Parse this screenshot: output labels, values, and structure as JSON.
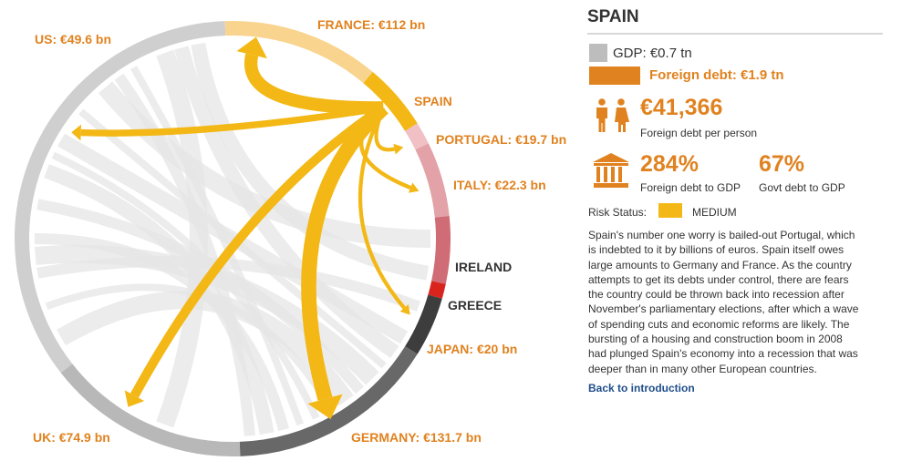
{
  "chart_data": {
    "type": "chord",
    "focus": "SPAIN",
    "segments": [
      {
        "label": "SPAIN",
        "highlight": true
      },
      {
        "label": "PORTUGAL: €19.7 bn",
        "highlight": true
      },
      {
        "label": "ITALY: €22.3 bn",
        "highlight": true
      },
      {
        "label": "IRELAND",
        "highlight": false
      },
      {
        "label": "GREECE",
        "highlight": false
      },
      {
        "label": "JAPAN: €20 bn",
        "highlight": true
      },
      {
        "label": "GERMANY: €131.7 bn",
        "highlight": true
      },
      {
        "label": "UK: €74.9 bn",
        "highlight": true
      },
      {
        "label": "US: €49.6 bn",
        "highlight": true
      },
      {
        "label": "FRANCE: €112 bn",
        "highlight": true
      }
    ],
    "flows_from_spain": [
      {
        "to": "GERMANY",
        "value": 131.7
      },
      {
        "to": "FRANCE",
        "value": 112
      },
      {
        "to": "UK",
        "value": 74.9
      },
      {
        "to": "US",
        "value": 49.6
      },
      {
        "to": "ITALY",
        "value": 22.3
      },
      {
        "to": "JAPAN",
        "value": 20
      },
      {
        "to": "PORTUGAL",
        "value": 19.7
      }
    ],
    "colors": {
      "spain": "#f3b816",
      "france": "#f9d48f",
      "portugal": "#f0c0c4",
      "italy": "#e2a2a8",
      "ireland": "#cf6c75",
      "greece": "#d9241e",
      "japan": "#3d3d3d",
      "germany": "#686868",
      "uk": "#b8b8b8",
      "us": "#cfcfcf",
      "other_arc": "#dddddd",
      "label_orange": "#e0821f",
      "label_dark": "#333333"
    }
  },
  "panel": {
    "title": "SPAIN",
    "gdp_label": "GDP: €0.7 tn",
    "foreign_debt_label": "Foreign debt: €1.9 tn",
    "per_person_value": "€41,366",
    "per_person_caption": "Foreign debt per person",
    "debt_gdp_value": "284%",
    "debt_gdp_caption": "Foreign debt to GDP",
    "govt_debt_value": "67%",
    "govt_debt_caption": "Govt debt to GDP",
    "risk_label": "Risk Status:",
    "risk_value": "MEDIUM",
    "risk_color": "#f3b816",
    "description": "Spain's number one worry is bailed-out Portugal, which is indebted to it by billions of euros. Spain itself owes large amounts to Germany and France. As the country attempts to get its debts under control, there are fears the country could be thrown back into recession after November's parliamentary elections, after which a wave of spending cuts and economic reforms are likely. The bursting of a housing and construction boom in 2008 had plunged Spain's economy into a recession that was deeper than in many other European countries.",
    "back_link": "Back to introduction",
    "icons": [
      "people-icon",
      "bank-icon"
    ]
  }
}
